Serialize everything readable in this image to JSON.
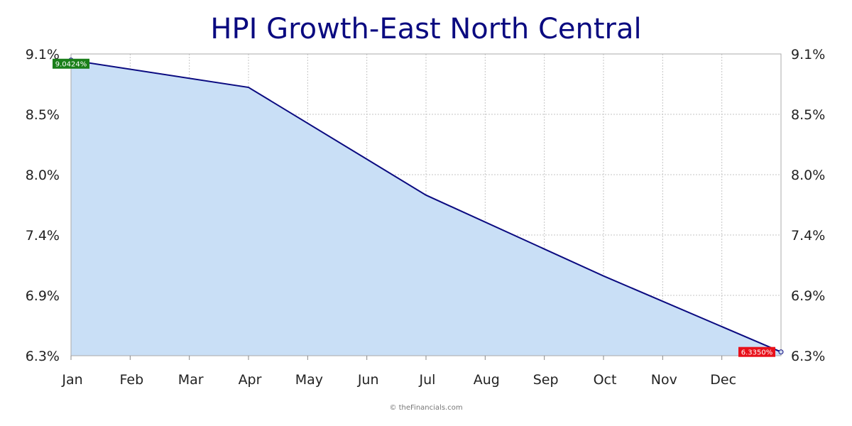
{
  "chart_data": {
    "type": "area",
    "title": "HPI Growth-East North Central",
    "categories": [
      "Jan",
      "Feb",
      "Mar",
      "Apr",
      "May",
      "Jun",
      "Jul",
      "Aug",
      "Sep",
      "Oct",
      "Nov",
      "Dec"
    ],
    "series": [
      {
        "x": [
          0,
          3,
          6,
          9,
          12
        ],
        "values": [
          9.0424,
          8.79,
          7.79,
          7.04,
          6.335
        ]
      }
    ],
    "y_ticks": [
      "9.1%",
      "8.5%",
      "8.0%",
      "7.4%",
      "6.9%",
      "6.3%"
    ],
    "ylim": [
      6.3,
      9.1
    ],
    "y_axis_sides": [
      "left",
      "right"
    ],
    "grid": true,
    "start_label": "9.0424%",
    "end_label": "6.3350%",
    "colors": {
      "line": "#0a0a80",
      "fill": "#c9dff6",
      "start_label_bg": "#1a7f1a",
      "end_label_bg": "#e8101a",
      "title": "#0a0a80"
    }
  },
  "credit": "© theFinancials.com"
}
